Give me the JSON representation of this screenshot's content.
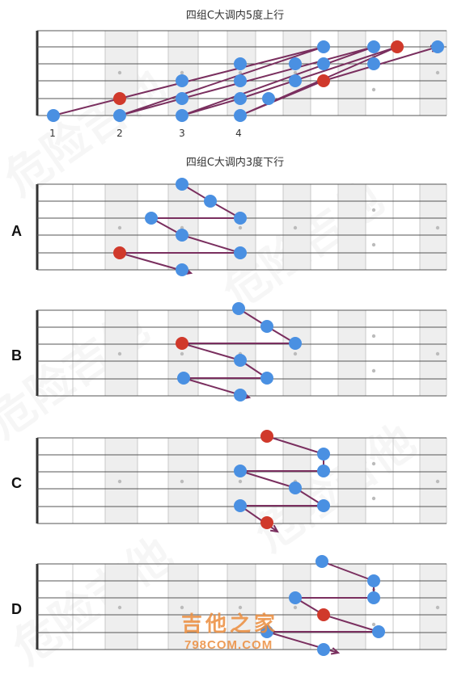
{
  "colors": {
    "note": "#4a90e2",
    "root": "#d0392b",
    "arrow": "#7a2f5f",
    "fret_line": "#c8c8c8",
    "shade": "#eeeeee",
    "string": "#555555",
    "marker": "#bbbbbb"
  },
  "top_diagram": {
    "title": "四组C大调内5度上行",
    "fret_numbers": [
      "1",
      "2",
      "3",
      "4"
    ]
  },
  "bottom_section": {
    "title": "四组C大调内3度下行"
  },
  "diagrams": [
    {
      "label": "A"
    },
    {
      "label": "B"
    },
    {
      "label": "C"
    },
    {
      "label": "D"
    }
  ],
  "logo": {
    "cn": "吉他之家",
    "en": "798COM.COM"
  }
}
